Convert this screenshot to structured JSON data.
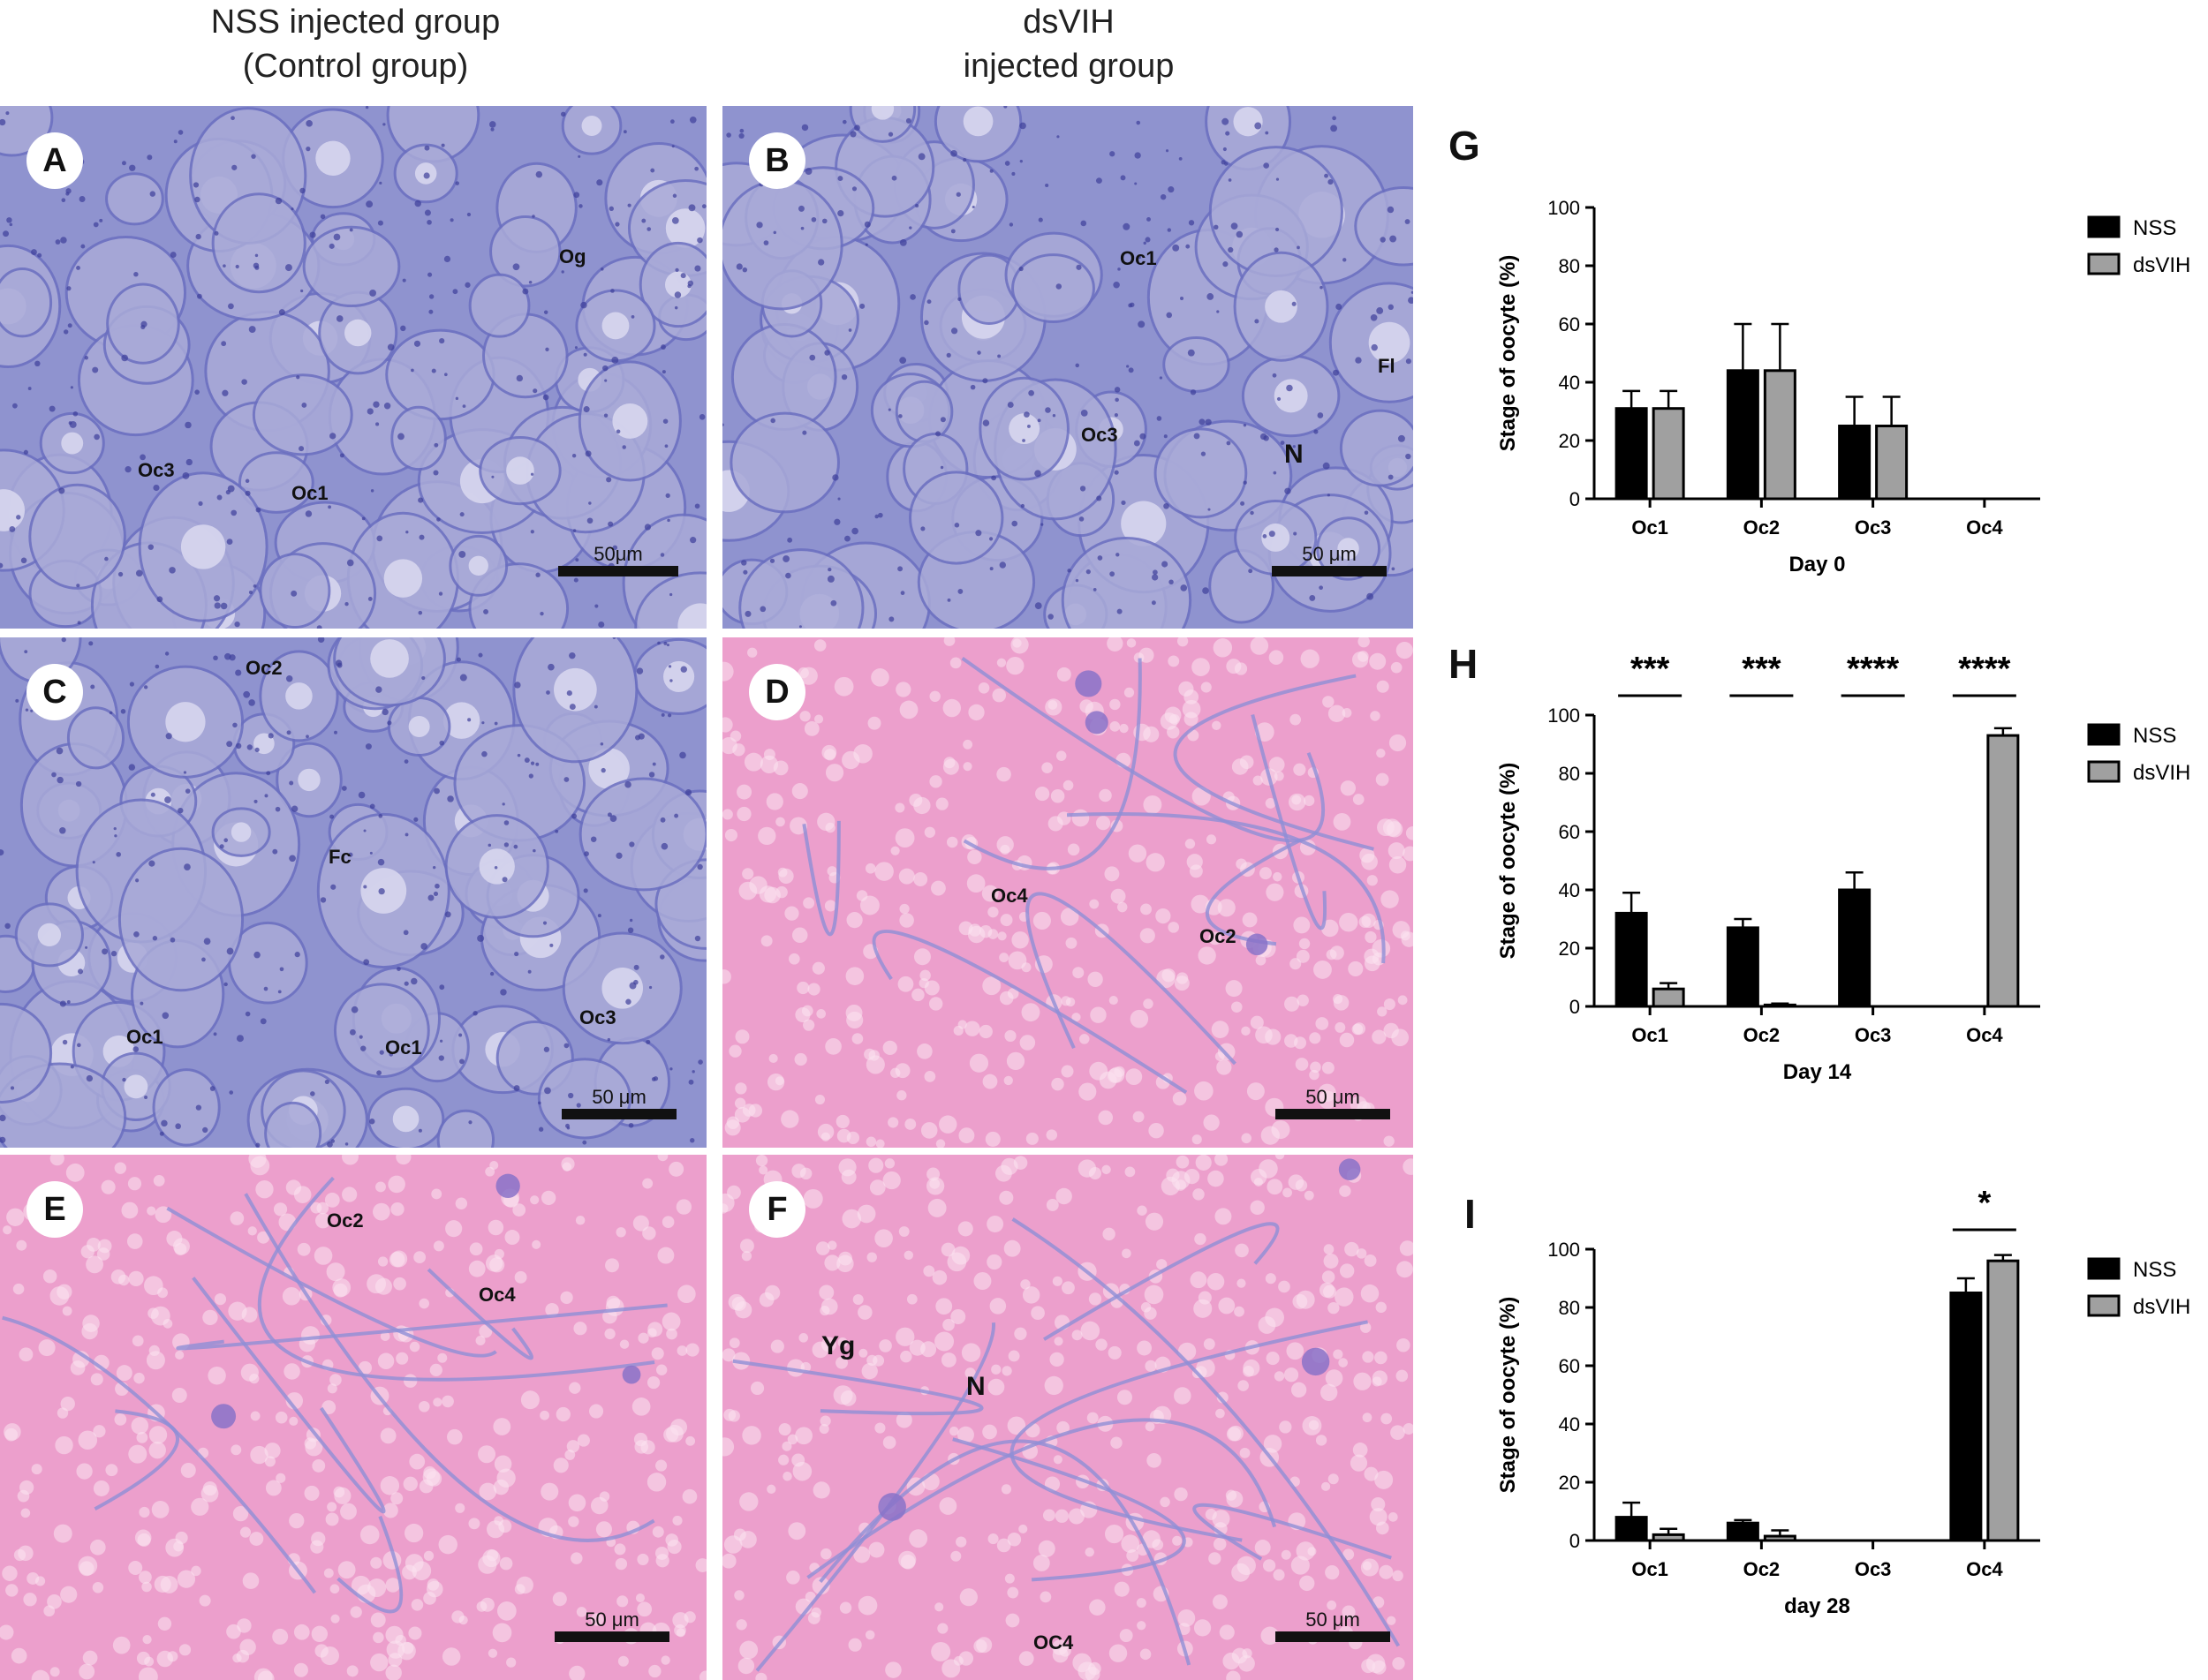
{
  "column_headers": {
    "left": [
      "NSS injected group",
      "(Control group)"
    ],
    "right": [
      "dsVIH",
      "injected group"
    ]
  },
  "panels": [
    {
      "letter": "A",
      "theme": "purple",
      "labels": [
        {
          "text": "Og"
        },
        {
          "text": "Oc3"
        },
        {
          "text": "Oc1"
        }
      ],
      "scale": "50μm"
    },
    {
      "letter": "B",
      "theme": "purple",
      "labels": [
        {
          "text": "Oc1"
        },
        {
          "text": "Fl"
        },
        {
          "text": "Oc3"
        },
        {
          "text": "N"
        }
      ],
      "scale": "50 μm"
    },
    {
      "letter": "C",
      "theme": "purple",
      "labels": [
        {
          "text": "Oc2"
        },
        {
          "text": "Fc"
        },
        {
          "text": "Oc1"
        },
        {
          "text": "Oc1"
        },
        {
          "text": "Oc3"
        }
      ],
      "scale": "50 μm"
    },
    {
      "letter": "D",
      "theme": "pink",
      "labels": [
        {
          "text": "Oc4"
        },
        {
          "text": "Oc2"
        }
      ],
      "scale": "50 μm"
    },
    {
      "letter": "E",
      "theme": "pink",
      "labels": [
        {
          "text": "Oc2"
        },
        {
          "text": "Oc4"
        }
      ],
      "scale": "50 μm"
    },
    {
      "letter": "F",
      "theme": "pink",
      "labels": [
        {
          "text": "Yg"
        },
        {
          "text": "N"
        },
        {
          "text": "OC4"
        }
      ],
      "scale": "50 μm"
    }
  ],
  "chart_data": [
    {
      "panel": "G",
      "type": "bar",
      "categories": [
        "Oc1",
        "Oc2",
        "Oc3",
        "Oc4"
      ],
      "series": [
        {
          "name": "NSS",
          "color": "#000000",
          "values": [
            31,
            44,
            25,
            0
          ],
          "errors": [
            6,
            16,
            10,
            0
          ]
        },
        {
          "name": "dsVIH",
          "color": "#a0a0a0",
          "values": [
            31,
            44,
            25,
            0
          ],
          "errors": [
            6,
            16,
            10,
            0
          ]
        }
      ],
      "ylabel": "Stage of oocyte (%)",
      "xlabel": "Day 0",
      "ylim": [
        0,
        100
      ],
      "yticks": [
        0,
        20,
        40,
        60,
        80,
        100
      ],
      "significance": [
        "",
        "",
        "",
        ""
      ]
    },
    {
      "panel": "H",
      "type": "bar",
      "categories": [
        "Oc1",
        "Oc2",
        "Oc3",
        "Oc4"
      ],
      "series": [
        {
          "name": "NSS",
          "color": "#000000",
          "values": [
            32,
            27,
            40,
            0
          ],
          "errors": [
            7,
            3,
            6,
            0
          ]
        },
        {
          "name": "dsVIH",
          "color": "#a0a0a0",
          "values": [
            6,
            0.5,
            0,
            93
          ],
          "errors": [
            2,
            0.5,
            0,
            2.5
          ]
        }
      ],
      "ylabel": "Stage of oocyte (%)",
      "xlabel": "Day 14",
      "ylim": [
        0,
        100
      ],
      "yticks": [
        0,
        20,
        40,
        60,
        80,
        100
      ],
      "significance": [
        "***",
        "***",
        "****",
        "****"
      ]
    },
    {
      "panel": "I",
      "type": "bar",
      "categories": [
        "Oc1",
        "Oc2",
        "Oc3",
        "Oc4"
      ],
      "series": [
        {
          "name": "NSS",
          "color": "#000000",
          "values": [
            8,
            6,
            0,
            85
          ],
          "errors": [
            5,
            1,
            0,
            5
          ]
        },
        {
          "name": "dsVIH",
          "color": "#a0a0a0",
          "values": [
            2,
            1.5,
            0,
            96
          ],
          "errors": [
            2,
            2,
            0,
            2
          ]
        }
      ],
      "ylabel": "Stage of oocyte (%)",
      "xlabel": "day 28",
      "ylim": [
        0,
        100
      ],
      "yticks": [
        0,
        20,
        40,
        60,
        80,
        100
      ],
      "significance": [
        "",
        "",
        "",
        "*"
      ]
    }
  ]
}
